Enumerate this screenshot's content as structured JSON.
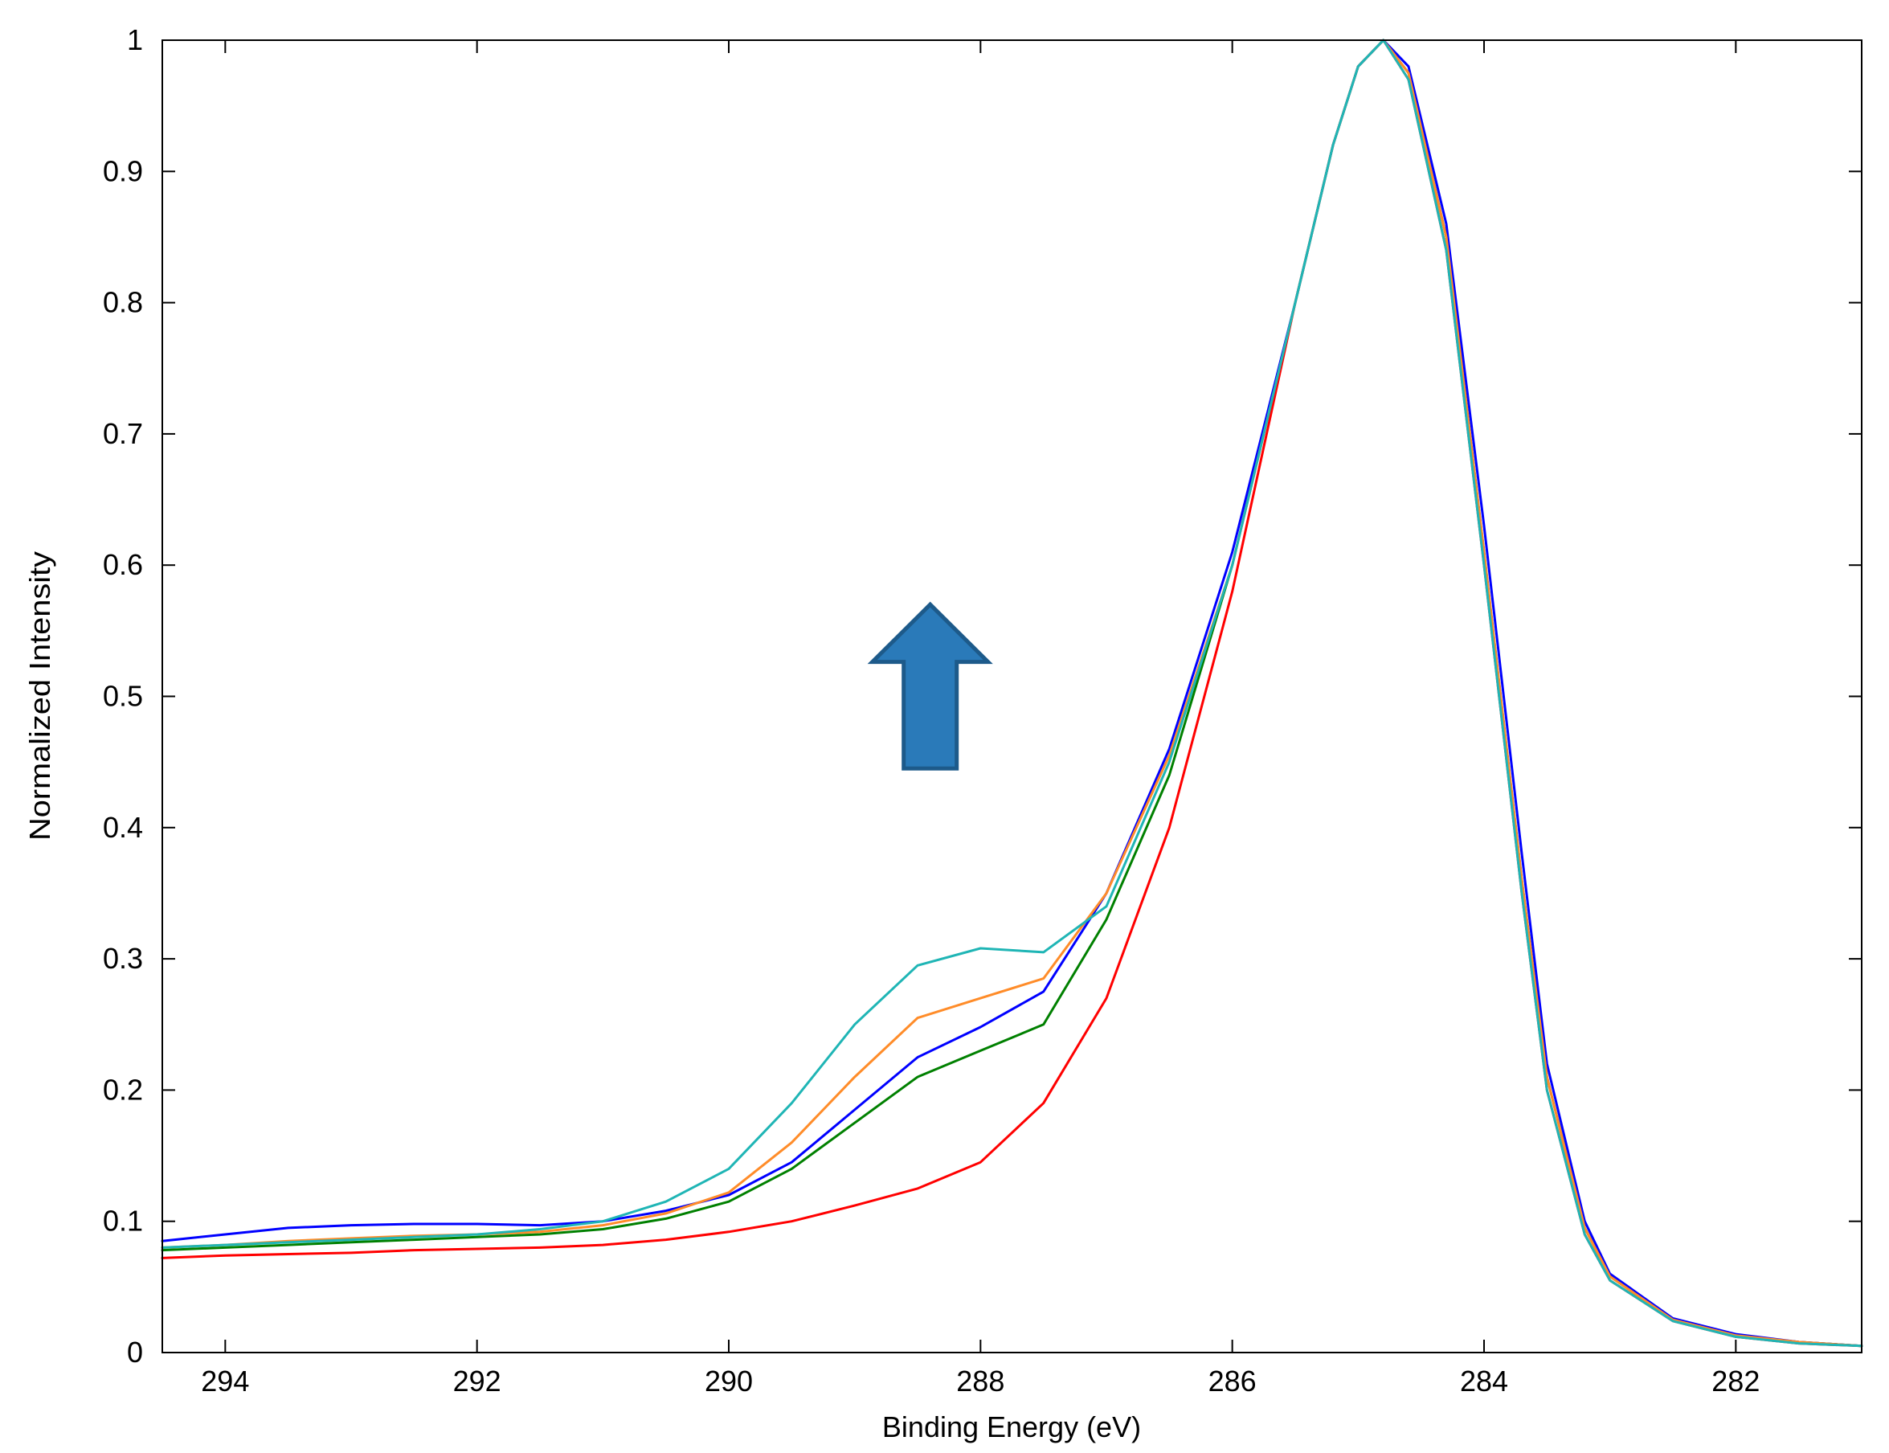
{
  "chart_data": {
    "type": "line",
    "title": "",
    "xlabel": "Binding Energy (eV)",
    "ylabel": "Normalized Intensity",
    "xlim": [
      294.5,
      281
    ],
    "x_reversed": true,
    "ylim": [
      0,
      1
    ],
    "xticks": [
      294,
      292,
      290,
      288,
      286,
      284,
      282
    ],
    "yticks": [
      0,
      0.1,
      0.2,
      0.3,
      0.4,
      0.5,
      0.6,
      0.7,
      0.8,
      0.9,
      1
    ],
    "ytick_labels": [
      "0",
      "0.1",
      "0.2",
      "0.3",
      "0.4",
      "0.5",
      "0.6",
      "0.7",
      "0.8",
      "0.9",
      "1"
    ],
    "grid": false,
    "legend": "none",
    "annotations": [
      {
        "type": "arrow",
        "direction": "up",
        "x": 288.4,
        "y_from": 0.445,
        "y_to": 0.57,
        "color": "#2a7ab9"
      }
    ],
    "series": [
      {
        "color": "#ff0000",
        "x": [
          294.5,
          294,
          293.5,
          293,
          292.5,
          292,
          291.5,
          291,
          290.5,
          290,
          289.5,
          289,
          288.5,
          288,
          287.5,
          287,
          286.5,
          286,
          285.5,
          285.2,
          285,
          284.8,
          284.6,
          284.3,
          284,
          283.7,
          283.5,
          283.2,
          283,
          282.5,
          282,
          281.5,
          281
        ],
        "y": [
          0.072,
          0.074,
          0.075,
          0.076,
          0.078,
          0.079,
          0.08,
          0.082,
          0.086,
          0.092,
          0.1,
          0.112,
          0.125,
          0.145,
          0.19,
          0.27,
          0.4,
          0.58,
          0.8,
          0.92,
          0.98,
          1.0,
          0.97,
          0.84,
          0.6,
          0.35,
          0.2,
          0.09,
          0.055,
          0.024,
          0.012,
          0.007,
          0.005
        ]
      },
      {
        "color": "#008000",
        "x": [
          294.5,
          294,
          293.5,
          293,
          292.5,
          292,
          291.5,
          291,
          290.5,
          290,
          289.5,
          289,
          288.5,
          288,
          287.5,
          287,
          286.5,
          286,
          285.5,
          285.2,
          285,
          284.8,
          284.6,
          284.3,
          284,
          283.7,
          283.5,
          283.2,
          283,
          282.5,
          282,
          281.5,
          281
        ],
        "y": [
          0.078,
          0.08,
          0.082,
          0.084,
          0.086,
          0.088,
          0.09,
          0.094,
          0.102,
          0.115,
          0.14,
          0.175,
          0.21,
          0.23,
          0.25,
          0.33,
          0.44,
          0.6,
          0.8,
          0.92,
          0.98,
          1.0,
          0.975,
          0.85,
          0.61,
          0.36,
          0.21,
          0.095,
          0.058,
          0.025,
          0.013,
          0.008,
          0.005
        ]
      },
      {
        "color": "#0000ff",
        "x": [
          294.5,
          294,
          293.5,
          293,
          292.5,
          292,
          291.5,
          291,
          290.5,
          290,
          289.5,
          289,
          288.5,
          288,
          287.5,
          287,
          286.5,
          286,
          285.5,
          285.2,
          285,
          284.8,
          284.6,
          284.3,
          284,
          283.7,
          283.5,
          283.2,
          283,
          282.5,
          282,
          281.5,
          281
        ],
        "y": [
          0.085,
          0.09,
          0.095,
          0.097,
          0.098,
          0.098,
          0.097,
          0.1,
          0.108,
          0.12,
          0.145,
          0.185,
          0.225,
          0.248,
          0.275,
          0.35,
          0.46,
          0.61,
          0.8,
          0.92,
          0.98,
          1.0,
          0.98,
          0.86,
          0.63,
          0.38,
          0.22,
          0.1,
          0.06,
          0.026,
          0.014,
          0.008,
          0.005
        ]
      },
      {
        "color": "#ff8c29",
        "x": [
          294.5,
          294,
          293.5,
          293,
          292.5,
          292,
          291.5,
          291,
          290.5,
          290,
          289.5,
          289,
          288.5,
          288,
          287.5,
          287,
          286.5,
          286,
          285.5,
          285.2,
          285,
          284.8,
          284.6,
          284.3,
          284,
          283.7,
          283.5,
          283.2,
          283,
          282.5,
          282,
          281.5,
          281
        ],
        "y": [
          0.08,
          0.082,
          0.085,
          0.087,
          0.089,
          0.09,
          0.092,
          0.097,
          0.106,
          0.122,
          0.16,
          0.21,
          0.255,
          0.27,
          0.285,
          0.35,
          0.455,
          0.6,
          0.8,
          0.92,
          0.98,
          1.0,
          0.975,
          0.85,
          0.61,
          0.36,
          0.21,
          0.095,
          0.058,
          0.025,
          0.013,
          0.008,
          0.005
        ]
      },
      {
        "color": "#1fb5b5",
        "x": [
          294.5,
          294,
          293.5,
          293,
          292.5,
          292,
          291.5,
          291,
          290.5,
          290,
          289.5,
          289,
          288.5,
          288,
          287.5,
          287,
          286.5,
          286,
          285.5,
          285.2,
          285,
          284.8,
          284.6,
          284.3,
          284,
          283.7,
          283.5,
          283.2,
          283,
          282.5,
          282,
          281.5,
          281
        ],
        "y": [
          0.08,
          0.082,
          0.084,
          0.086,
          0.088,
          0.09,
          0.094,
          0.1,
          0.115,
          0.14,
          0.19,
          0.25,
          0.295,
          0.308,
          0.305,
          0.34,
          0.45,
          0.6,
          0.8,
          0.92,
          0.98,
          1.0,
          0.97,
          0.84,
          0.6,
          0.35,
          0.2,
          0.09,
          0.055,
          0.024,
          0.012,
          0.007,
          0.005
        ]
      }
    ]
  }
}
